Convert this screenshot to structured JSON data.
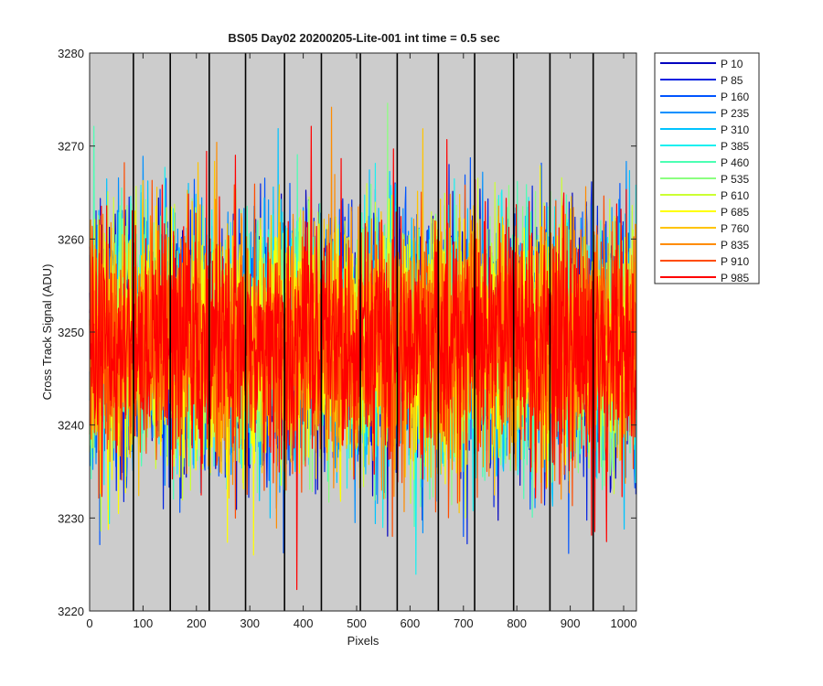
{
  "chart_data": {
    "type": "line",
    "title": "BS05 Day02 20200205-Lite-001 int time = 0.5 sec",
    "xlabel": "Pixels",
    "ylabel": "Cross Track Signal (ADU)",
    "xlim": [
      0,
      1024
    ],
    "ylim": [
      3220,
      3280
    ],
    "xticks": [
      0,
      100,
      200,
      300,
      400,
      500,
      600,
      700,
      800,
      900,
      1000
    ],
    "yticks": [
      3220,
      3230,
      3240,
      3250,
      3260,
      3270,
      3280
    ],
    "axes_background": "#cccccc",
    "grid": false,
    "vertical_reference_lines_x": [
      82,
      151,
      224,
      292,
      365,
      434,
      507,
      576,
      653,
      721,
      794,
      862,
      943
    ],
    "legend_location": "outside right, top",
    "noise_model": {
      "mean": 3249,
      "std": 6.5,
      "min_observed": 3220,
      "max_observed": 3279,
      "points_per_series": 1024
    },
    "series": [
      {
        "name": "P 10",
        "color": "#0000bf"
      },
      {
        "name": "P 85",
        "color": "#0021e1"
      },
      {
        "name": "P 160",
        "color": "#0055ff"
      },
      {
        "name": "P 235",
        "color": "#0090ff"
      },
      {
        "name": "P 310",
        "color": "#00c4ff"
      },
      {
        "name": "P 385",
        "color": "#1af0f0"
      },
      {
        "name": "P 460",
        "color": "#4cffb3"
      },
      {
        "name": "P 535",
        "color": "#8cff80"
      },
      {
        "name": "P 610",
        "color": "#ccff33"
      },
      {
        "name": "P 685",
        "color": "#ffff00"
      },
      {
        "name": "P 760",
        "color": "#ffc400"
      },
      {
        "name": "P 835",
        "color": "#ff8c00"
      },
      {
        "name": "P 910",
        "color": "#ff4c00"
      },
      {
        "name": "P 985",
        "color": "#ff0000"
      }
    ]
  }
}
